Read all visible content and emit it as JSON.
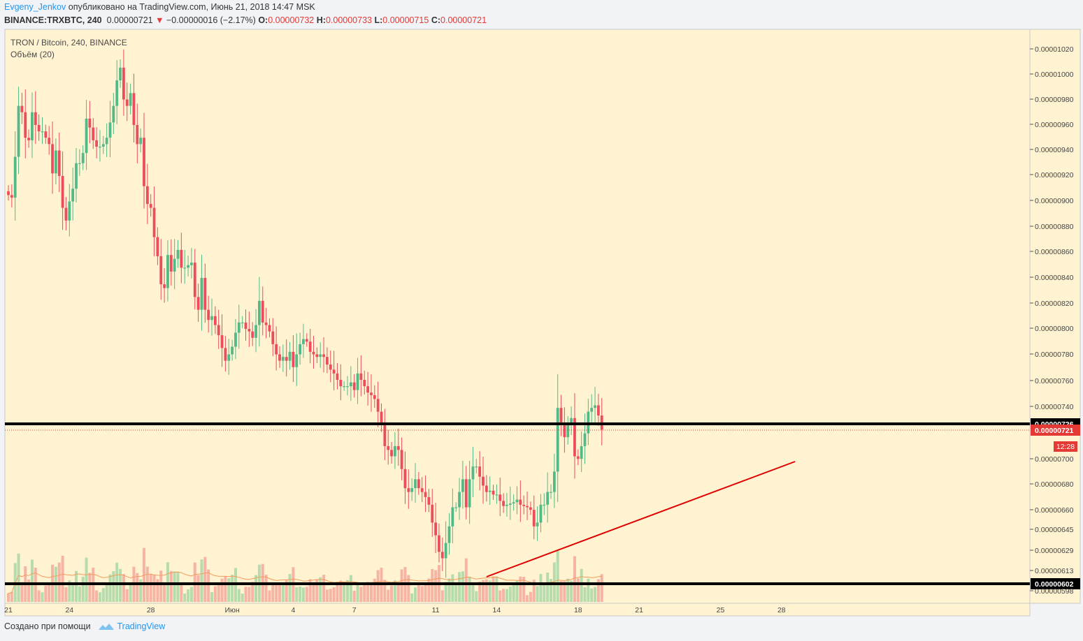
{
  "header": {
    "user": "Evgeny_Jenkov",
    "published": "опубликовано на TradingView.com, Июнь 21, 2018 14:47 MSK",
    "symbol": "BINANCE:TRXBTC, 240",
    "last": "0.00000721",
    "change": "−0.00000016 (−2.17%)",
    "o_label": "O:",
    "o": "0.00000732",
    "h_label": "H:",
    "h": "0.00000733",
    "l_label": "L:",
    "l": "0.00000715",
    "c_label": "C:",
    "c": "0.00000721"
  },
  "legend": {
    "title": "TRON / Bitcoin, 240, BINANCE",
    "volume": "Объём (20)"
  },
  "footer": {
    "made_with": "Создано при помощи",
    "brand": "TradingView"
  },
  "colors": {
    "background": "#fff3d2",
    "up": "#53b987",
    "down": "#eb4d5c",
    "up_volume": "#b6dcae",
    "down_volume": "#f6b4a5",
    "volume_ma": "#f39c5a",
    "trendline": "#e00000",
    "level_line": "#000000",
    "last_price": "#e53935"
  },
  "chart_data": {
    "type": "candlestick",
    "interval": "240",
    "y_ticks": [
      "0.00001020",
      "0.00001000",
      "0.00000980",
      "0.00000960",
      "0.00000940",
      "0.00000920",
      "0.00000900",
      "0.00000880",
      "0.00000860",
      "0.00000840",
      "0.00000820",
      "0.00000800",
      "0.00000780",
      "0.00000760",
      "0.00000740",
      "0.00000700",
      "0.00000680",
      "0.00000660",
      "0.00000645",
      "0.00000629",
      "0.00000613",
      "0.00000598"
    ],
    "x_ticks": [
      {
        "label": "21",
        "i": 0
      },
      {
        "label": "24",
        "i": 18
      },
      {
        "label": "28",
        "i": 42
      },
      {
        "label": "Июн",
        "i": 66
      },
      {
        "label": "4",
        "i": 84
      },
      {
        "label": "7",
        "i": 102
      },
      {
        "label": "11",
        "i": 126
      },
      {
        "label": "14",
        "i": 144
      },
      {
        "label": "18",
        "i": 168
      },
      {
        "label": "21",
        "i": 186
      },
      {
        "label": "25",
        "i": 210
      },
      {
        "label": "28",
        "i": 228
      }
    ],
    "levels": [
      {
        "price": 7.26e-06,
        "label": "0.00000726"
      },
      {
        "price": 6.02e-06,
        "label": "0.00000602"
      }
    ],
    "last_price": {
      "price": 7.21e-06,
      "label": "0.00000721",
      "timer": "12:28"
    },
    "trendline": {
      "from": {
        "i": 141,
        "price": 6.09e-06
      },
      "to": {
        "i": 232,
        "price": 6.97e-06
      }
    },
    "closes": [
      9.05,
      9.03,
      9.35,
      9.75,
      9.7,
      9.5,
      9.48,
      9.7,
      9.6,
      9.55,
      9.55,
      9.5,
      9.45,
      9.22,
      9.4,
      9.2,
      8.95,
      8.85,
      9.0,
      9.1,
      9.3,
      9.3,
      9.38,
      9.65,
      9.58,
      9.48,
      9.43,
      9.43,
      9.45,
      9.5,
      9.62,
      9.75,
      9.95,
      10.05,
      9.8,
      9.75,
      9.85,
      9.6,
      9.45,
      9.5,
      9.12,
      8.98,
      8.95,
      8.72,
      8.57,
      8.35,
      8.32,
      8.58,
      8.45,
      8.55,
      8.62,
      8.48,
      8.48,
      8.5,
      8.52,
      8.25,
      8.15,
      8.4,
      8.15,
      8.07,
      8.1,
      8.03,
      7.95,
      7.85,
      7.75,
      7.8,
      7.86,
      7.97,
      8.05,
      8.05,
      8.0,
      7.98,
      7.93,
      8.03,
      8.22,
      8.05,
      8.03,
      7.98,
      7.88,
      7.8,
      7.75,
      7.78,
      7.75,
      7.82,
      7.7,
      7.8,
      7.88,
      7.92,
      7.9,
      7.82,
      7.8,
      7.78,
      7.8,
      7.78,
      7.72,
      7.68,
      7.65,
      7.6,
      7.55,
      7.55,
      7.55,
      7.58,
      7.52,
      7.65,
      7.6,
      7.55,
      7.5,
      7.48,
      7.45,
      7.35,
      7.25,
      7.08,
      7.05,
      7.0,
      7.08,
      7.05,
      6.9,
      6.75,
      6.72,
      6.75,
      6.82,
      6.75,
      6.72,
      6.68,
      6.62,
      6.48,
      6.38,
      6.25,
      6.2,
      6.32,
      6.45,
      6.6,
      6.6,
      6.72,
      6.82,
      6.6,
      6.82,
      6.92,
      6.92,
      6.84,
      6.77,
      6.72,
      6.73,
      6.7,
      6.7,
      6.65,
      6.61,
      6.62,
      6.63,
      6.64,
      6.66,
      6.62,
      6.61,
      6.6,
      6.58,
      6.45,
      6.48,
      6.62,
      6.62,
      6.72,
      6.72,
      6.88,
      7.38,
      7.25,
      7.15,
      7.25,
      7.3,
      7.0,
      6.98,
      7.08,
      7.18,
      7.35,
      7.38,
      7.4,
      7.32,
      7.21
    ]
  }
}
